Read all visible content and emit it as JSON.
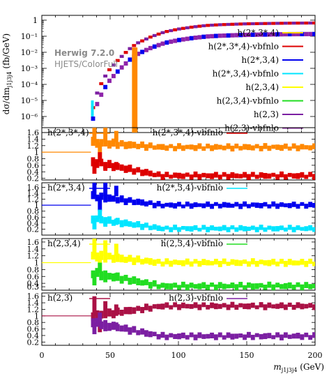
{
  "chart_data": {
    "type": "line",
    "title": "",
    "xlabel": "m_{j1j3j4} (GeV)",
    "xlabel_text": "m",
    "xlabel_sub": "j1j3j4",
    "xlabel_unit": "(GeV)",
    "xlim": [
      0,
      200
    ],
    "x_ticks": [
      "0",
      "50",
      "100",
      "150",
      "200"
    ],
    "stamp": {
      "line1": "Herwig 7.2.0",
      "line2": "HJETS/ColorFull"
    },
    "main_panel": {
      "ylabel": "dσ/dm_{j1j3j4} (fb/GeV)",
      "ylabel_text": "dσ/dm",
      "ylabel_sub": "j1j3j4",
      "ylabel_unit": "(fb/GeV)",
      "yscale": "log",
      "ylim": [
        1e-07,
        2
      ],
      "y_ticks": [
        "1",
        "10⁻¹",
        "10⁻²",
        "10⁻³",
        "10⁻⁴",
        "10⁻⁵",
        "10⁻⁶"
      ],
      "legend_position": "top-right",
      "legend": [
        {
          "name": "h(2*,3*,4)",
          "color": "#ffcc00"
        },
        {
          "name": "h(2*,3*,4)-vbfnlo",
          "color": "#dd0000"
        },
        {
          "name": "h(2*,3,4)",
          "color": "#0000ee"
        },
        {
          "name": "h(2*,3,4)-vbfnlo",
          "color": "#00e5ff"
        },
        {
          "name": "h(2,3,4)",
          "color": "#ffff00"
        },
        {
          "name": "h(2,3,4)-vbfnlo",
          "color": "#22dd22"
        },
        {
          "name": "h(2,3)",
          "color": "#7b1fa2"
        },
        {
          "name": "h(2,3)-vbfnlo",
          "color": "#8e24aa"
        }
      ],
      "envelope": {
        "x": [
          36,
          38,
          40,
          42,
          44,
          46,
          48,
          50,
          55,
          60,
          65,
          70,
          80,
          90,
          100,
          110,
          120,
          130,
          140,
          150,
          160,
          170,
          180,
          190,
          200
        ],
        "y": [
          1e-06,
          6e-06,
          2.5e-05,
          6e-05,
          0.00015,
          0.0003,
          0.0006,
          0.001,
          0.003,
          0.008,
          0.02,
          0.04,
          0.1,
          0.2,
          0.3,
          0.4,
          0.5,
          0.56,
          0.6,
          0.64,
          0.66,
          0.68,
          0.7,
          0.71,
          0.72
        ]
      },
      "vbfnlo_scale": 0.2,
      "highlight_bins": [
        {
          "x0": 66,
          "x1": 70,
          "ylow": 1e-07,
          "yhigh": 0.02,
          "color": "#ff8800"
        },
        {
          "x0": 36,
          "x1": 38,
          "ylow": 1e-06,
          "yhigh": 1e-05,
          "color": "#00e5ff"
        }
      ]
    },
    "ratio_panels": [
      {
        "num_label": "h(2*,3*,4)",
        "num_color": "#ff8800",
        "den_label": "h(2*,3*,4)-vbfnlo",
        "den_color": "#dd0000",
        "ylim": [
          0.15,
          1.75
        ],
        "y_ticks": [
          "1.6",
          "1.4",
          "1.2",
          "1",
          "0.8",
          "0.6",
          "0.4",
          "0.2"
        ],
        "reference_x1": 36,
        "series": [
          {
            "name": "h(2*,3*,4)",
            "color": "#ff8800",
            "level": 1.15,
            "start_level": 1.3
          },
          {
            "name": "h(2*,3*,4)-vbfnlo",
            "color": "#dd0000",
            "level": 0.28,
            "start_level": 0.7
          }
        ]
      },
      {
        "num_label": "h(2*,3,4)",
        "num_color": "#0000ee",
        "den_label": "h(2*,3,4)-vbfnlo",
        "den_color": "#00e5ff",
        "ylim": [
          0.0,
          1.75
        ],
        "y_ticks": [
          "1.6",
          "1.4",
          "1.2",
          "1",
          "0.8",
          "0.6",
          "0.4",
          "0.2"
        ],
        "reference_x1": 36,
        "series": [
          {
            "name": "h(2*,3,4)",
            "color": "#0000ee",
            "level": 1.0,
            "start_level": 1.3
          },
          {
            "name": "h(2*,3,4)-vbfnlo",
            "color": "#00e5ff",
            "level": 0.22,
            "start_level": 0.55
          }
        ]
      },
      {
        "num_label": "h(2,3,4)",
        "num_color": "#ffff00",
        "den_label": "h(2,3,4)-vbfnlo",
        "den_color": "#22dd22",
        "ylim": [
          0.2,
          1.7
        ],
        "y_ticks": [
          "1.6",
          "1.4",
          "1.2",
          "1",
          "0.8",
          "0.6",
          "0.4",
          "0.3"
        ],
        "reference_x1": 36,
        "series": [
          {
            "name": "h(2,3,4)",
            "color": "#ffff00",
            "level": 1.0,
            "start_level": 1.2
          },
          {
            "name": "h(2,3,4)-vbfnlo",
            "color": "#22dd22",
            "level": 0.32,
            "start_level": 0.7
          }
        ]
      },
      {
        "num_label": "h(2,3)",
        "num_color": "#aa1145",
        "den_label": "h(2,3)-vbfnlo",
        "den_color": "#7b1fa2",
        "ylim": [
          0.1,
          1.7
        ],
        "y_ticks": [
          "1.6",
          "1.4",
          "1.2",
          "1",
          "0.8",
          "0.6",
          "0.4",
          "0.2"
        ],
        "reference_x1": 36,
        "series": [
          {
            "name": "h(2,3)",
            "color": "#aa1145",
            "level": 1.3,
            "start_level": 1.0
          },
          {
            "name": "h(2,3)-vbfnlo",
            "color": "#7b1fa2",
            "level": 0.38,
            "start_level": 0.8
          }
        ]
      }
    ]
  }
}
